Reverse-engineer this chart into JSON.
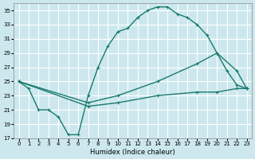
{
  "xlabel": "Humidex (Indice chaleur)",
  "background_color": "#cce8ee",
  "grid_color": "#ffffff",
  "line_color": "#1a7a6e",
  "ylim": [
    17,
    36
  ],
  "xlim": [
    -0.5,
    23.5
  ],
  "yticks": [
    17,
    19,
    21,
    23,
    25,
    27,
    29,
    31,
    33,
    35
  ],
  "xticks": [
    0,
    1,
    2,
    3,
    4,
    5,
    6,
    7,
    8,
    9,
    10,
    11,
    12,
    13,
    14,
    15,
    16,
    17,
    18,
    19,
    20,
    21,
    22,
    23
  ],
  "line1_x": [
    0,
    1,
    2,
    3,
    4,
    5,
    6,
    7,
    8,
    9,
    10,
    11,
    12,
    13,
    14,
    15,
    16,
    17,
    18,
    19,
    20,
    21,
    22,
    23
  ],
  "line1_y": [
    25,
    24,
    21,
    21,
    20,
    17.5,
    17.5,
    23,
    27,
    30,
    32,
    32.5,
    34,
    35,
    35.5,
    35.5,
    34.5,
    34,
    33,
    31.5,
    29,
    26.5,
    24.5,
    24
  ],
  "line2_x": [
    0,
    7,
    10,
    14,
    18,
    20,
    22,
    23
  ],
  "line2_y": [
    25,
    22,
    23,
    25,
    27.5,
    29,
    26.5,
    24
  ],
  "line3_x": [
    0,
    7,
    10,
    14,
    18,
    20,
    22,
    23
  ],
  "line3_y": [
    25,
    21.5,
    22,
    23,
    23.5,
    23.5,
    24,
    24
  ],
  "marker_size": 2.5,
  "line_width": 1.0
}
